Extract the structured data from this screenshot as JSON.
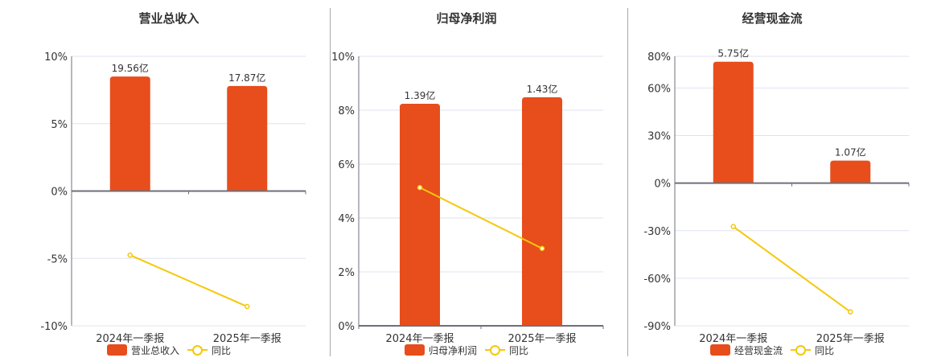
{
  "colors": {
    "bar": "#e84d1c",
    "line": "#f5c80c",
    "grid": "#dfe3ee",
    "axis": "#6e7079",
    "divider": "#a8a8a8"
  },
  "chart_data": [
    {
      "type": "bar+line",
      "title": "营业总收入",
      "categories": [
        "2024年一季报",
        "2025年一季报"
      ],
      "series": [
        {
          "name": "营业总收入",
          "type": "bar",
          "labels": [
            "19.56亿",
            "17.87亿"
          ],
          "values": [
            8.5,
            7.8
          ]
        },
        {
          "name": "同比",
          "type": "line",
          "values": [
            -4.75,
            -8.57
          ]
        }
      ],
      "yticks": [
        "10%",
        "5%",
        "0%",
        "-5%",
        "-10%"
      ],
      "ylim": [
        -10,
        10
      ],
      "grid": true,
      "legend_position": "bottom"
    },
    {
      "type": "bar+line",
      "title": "归母净利润",
      "categories": [
        "2024年一季报",
        "2025年一季报"
      ],
      "series": [
        {
          "name": "归母净利润",
          "type": "bar",
          "labels": [
            "1.39亿",
            "1.43亿"
          ],
          "values": [
            8.24,
            8.48
          ]
        },
        {
          "name": "同比",
          "type": "line",
          "values": [
            5.13,
            2.87
          ]
        }
      ],
      "yticks": [
        "10%",
        "8%",
        "6%",
        "4%",
        "2%",
        "0%"
      ],
      "ylim": [
        0,
        10
      ],
      "grid": true,
      "legend_position": "bottom"
    },
    {
      "type": "bar+line",
      "title": "经营现金流",
      "categories": [
        "2024年一季报",
        "2025年一季报"
      ],
      "series": [
        {
          "name": "经营现金流",
          "type": "bar",
          "labels": [
            "5.75亿",
            "1.07亿"
          ],
          "values": [
            76.6,
            14.2
          ]
        },
        {
          "name": "同比",
          "type": "line",
          "values": [
            -27.4,
            -81.2
          ]
        }
      ],
      "yticks": [
        "80%",
        "60%",
        "30%",
        "0%",
        "-30%",
        "-60%",
        "-90%"
      ],
      "ylim": [
        -90,
        80
      ],
      "grid": true,
      "legend_position": "bottom"
    }
  ],
  "panels": [
    {
      "title": "营业总收入",
      "legend": {
        "bar_label": "营业总收入",
        "line_label": "同比"
      },
      "x_labels": [
        "2024年一季报",
        "2025年一季报"
      ],
      "bar_labels": [
        "19.56亿",
        "17.87亿"
      ],
      "ytick_labels": [
        "10%",
        "5%",
        "0%",
        "-5%",
        "-10%"
      ]
    },
    {
      "title": "归母净利润",
      "legend": {
        "bar_label": "归母净利润",
        "line_label": "同比"
      },
      "x_labels": [
        "2024年一季报",
        "2025年一季报"
      ],
      "bar_labels": [
        "1.39亿",
        "1.43亿"
      ],
      "ytick_labels": [
        "10%",
        "8%",
        "6%",
        "4%",
        "2%",
        "0%"
      ]
    },
    {
      "title": "经营现金流",
      "legend": {
        "bar_label": "经营现金流",
        "line_label": "同比"
      },
      "x_labels": [
        "2024年一季报",
        "2025年一季报"
      ],
      "bar_labels": [
        "5.75亿",
        "1.07亿"
      ],
      "ytick_labels": [
        "80%",
        "60%",
        "30%",
        "0%",
        "-30%",
        "-60%",
        "-90%"
      ]
    }
  ]
}
